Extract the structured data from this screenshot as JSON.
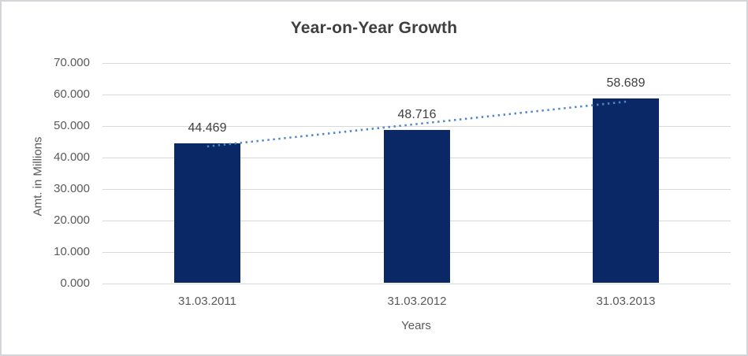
{
  "chart_data": {
    "type": "bar",
    "title": "Year-on-Year Growth",
    "xlabel": "Years",
    "ylabel": "Amt. in Millions",
    "categories": [
      "31.03.2011",
      "31.03.2012",
      "31.03.2013"
    ],
    "values": [
      44.469,
      48.716,
      58.689
    ],
    "data_labels": [
      "44.469",
      "48.716",
      "58.689"
    ],
    "ylim": [
      0,
      70
    ],
    "ytick_step": 10,
    "ytick_labels": [
      "0.000",
      "10.000",
      "20.000",
      "30.000",
      "40.000",
      "50.000",
      "60.000",
      "70.000"
    ],
    "grid": true,
    "legend": "none",
    "trendline": {
      "type": "linear",
      "style": "dotted"
    },
    "colors": {
      "bar": "#0a2766",
      "trendline": "#4f86c6",
      "gridline": "#d9d9d9",
      "axis_text": "#595959",
      "data_label_text": "#404040",
      "title_text": "#3f3f3f",
      "frame_border": "#d3d5d8",
      "background": "#ffffff"
    }
  }
}
